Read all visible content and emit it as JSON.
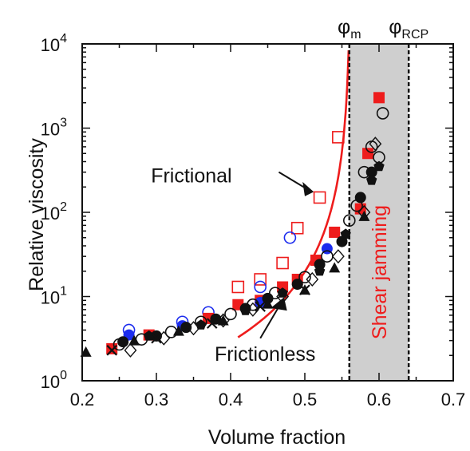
{
  "chart_data": {
    "type": "scatter",
    "title": "",
    "xlabel": "Volume fraction",
    "ylabel": "Relative viscosity",
    "xlim": [
      0.2,
      0.7
    ],
    "ylim": [
      1,
      10000
    ],
    "yscale": "log",
    "x_ticks": [
      "0.2",
      "0.3",
      "0.4",
      "0.5",
      "0.6",
      "0.7"
    ],
    "y_ticks": [
      {
        "base": "10",
        "exp": "0"
      },
      {
        "base": "10",
        "exp": "1"
      },
      {
        "base": "10",
        "exp": "2"
      },
      {
        "base": "10",
        "exp": "3"
      },
      {
        "base": "10",
        "exp": "4"
      }
    ],
    "grid": false,
    "colors": {
      "red": "#ee1c1c",
      "blue": "#1c2cee",
      "black": "#111111",
      "shade": "#cfcfcf"
    },
    "vlines": [
      {
        "x": 0.56,
        "label": "φ",
        "sub": "m"
      },
      {
        "x": 0.64,
        "label": "φ",
        "sub": "RCP"
      }
    ],
    "shaded_region": {
      "x": [
        0.56,
        0.64
      ],
      "label": "Shear jamming"
    },
    "annotations": [
      {
        "text": "Frictional",
        "x": 0.34,
        "y": 750
      },
      {
        "text": "Frictionless",
        "x": 0.455,
        "y": 2.0
      }
    ],
    "fit_curve": {
      "name": "Frictional",
      "phi_max": 0.562,
      "prefactor": 0.24,
      "exponent": 2,
      "x_start": 0.41
    },
    "series": [
      {
        "name": "red open squares",
        "marker": "square-open",
        "color": "red",
        "x": [
          0.41,
          0.44,
          0.47,
          0.49,
          0.52,
          0.545
        ],
        "y": [
          13,
          16,
          25,
          65,
          150,
          780
        ]
      },
      {
        "name": "blue open circles",
        "marker": "circle-open",
        "color": "blue",
        "x": [
          0.263,
          0.335,
          0.37,
          0.44,
          0.48
        ],
        "y": [
          4,
          5,
          6.5,
          13,
          50
        ]
      },
      {
        "name": "red filled squares",
        "marker": "square-filled",
        "color": "red",
        "x": [
          0.24,
          0.29,
          0.37,
          0.41,
          0.44,
          0.47,
          0.49,
          0.515,
          0.54,
          0.575,
          0.585,
          0.6
        ],
        "y": [
          2.4,
          3.5,
          5.5,
          8,
          9,
          13,
          16,
          27,
          58,
          110,
          500,
          2300
        ]
      },
      {
        "name": "blue filled circles",
        "marker": "circle-filled",
        "color": "blue",
        "x": [
          0.263,
          0.335,
          0.44,
          0.53
        ],
        "y": [
          3.5,
          4.5,
          8.5,
          37
        ]
      },
      {
        "name": "black open circles",
        "marker": "circle-open",
        "color": "black",
        "x": [
          0.25,
          0.28,
          0.32,
          0.36,
          0.4,
          0.43,
          0.46,
          0.5,
          0.53,
          0.56,
          0.57,
          0.58,
          0.59,
          0.6,
          0.605
        ],
        "y": [
          2.7,
          3.1,
          3.8,
          5,
          6.2,
          8,
          11,
          17,
          30,
          80,
          120,
          300,
          600,
          450,
          1500
        ]
      },
      {
        "name": "black filled circles",
        "marker": "circle-filled",
        "color": "black",
        "x": [
          0.255,
          0.3,
          0.34,
          0.38,
          0.42,
          0.45,
          0.49,
          0.52,
          0.55,
          0.575,
          0.59
        ],
        "y": [
          2.9,
          3.4,
          4.3,
          5.4,
          7.2,
          9.5,
          14,
          24,
          45,
          150,
          300
        ]
      },
      {
        "name": "black open diamonds",
        "marker": "diamond-open",
        "color": "black",
        "x": [
          0.265,
          0.31,
          0.35,
          0.39,
          0.43,
          0.47,
          0.51,
          0.545,
          0.58,
          0.595
        ],
        "y": [
          2.3,
          3.2,
          4.2,
          5.2,
          7,
          10,
          16,
          30,
          100,
          650
        ]
      },
      {
        "name": "black filled triangles",
        "marker": "triangle-filled",
        "color": "black",
        "x": [
          0.205,
          0.27,
          0.33,
          0.39,
          0.45,
          0.5,
          0.54,
          0.58
        ],
        "y": [
          2.2,
          3,
          3.9,
          5.2,
          8.2,
          12,
          22,
          90
        ]
      },
      {
        "name": "black filled pentagons",
        "marker": "pentagon-filled",
        "color": "black",
        "x": [
          0.29,
          0.36,
          0.42,
          0.47,
          0.52,
          0.555,
          0.59,
          0.6
        ],
        "y": [
          3.4,
          4.6,
          6.8,
          11,
          20,
          55,
          240,
          350
        ]
      },
      {
        "name": "black crosses",
        "marker": "cross",
        "color": "black",
        "x": [
          0.24,
          0.3,
          0.375,
          0.44,
          0.5
        ],
        "y": [
          2.3,
          3.2,
          4.8,
          7.6,
          12
        ]
      }
    ]
  }
}
